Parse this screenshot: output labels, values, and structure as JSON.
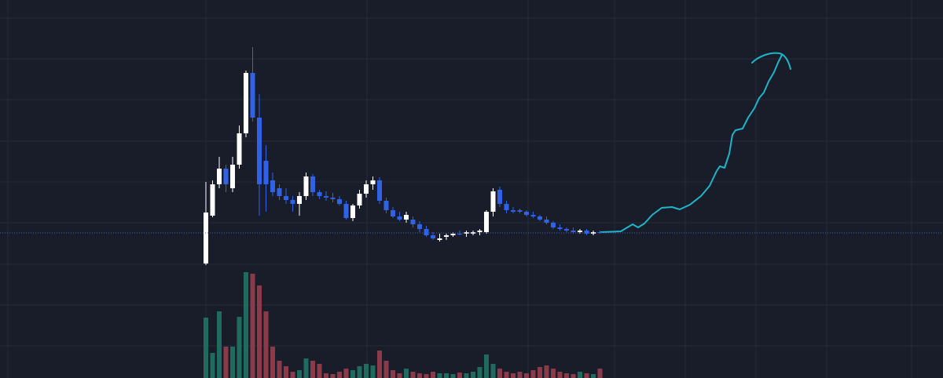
{
  "chart_data": {
    "type": "candlestick",
    "ylim": [
      0,
      482
    ],
    "volume_ylim": [
      0,
      140
    ],
    "up_color": "#ffffff",
    "down_color": "#2f62e6",
    "volume_up_color": "#1f6b5e",
    "volume_down_color": "#8a3a49",
    "last_price_line": true,
    "last_price_color": "#3f63d8",
    "open": [
      146,
      207,
      247,
      267,
      242,
      272,
      312,
      389,
      332,
      277,
      252,
      242,
      232,
      227,
      222,
      232,
      257,
      237,
      232,
      230,
      228,
      222,
      204,
      220,
      235,
      247,
      252,
      226,
      214,
      206,
      202,
      202,
      196,
      190,
      182,
      176,
      180,
      182,
      184,
      184,
      184,
      186,
      186,
      212,
      240,
      222,
      214,
      214,
      212,
      208,
      206,
      202,
      198,
      192,
      190,
      188,
      186,
      188,
      184,
      186
    ],
    "high": [
      250,
      252,
      282,
      272,
      282,
      322,
      392,
      422,
      362,
      297,
      262,
      247,
      242,
      232,
      237,
      262,
      260,
      240,
      238,
      236,
      232,
      226,
      222,
      240,
      252,
      257,
      256,
      230,
      218,
      212,
      212,
      206,
      200,
      194,
      186,
      184,
      184,
      186,
      188,
      188,
      188,
      190,
      214,
      242,
      244,
      226,
      218,
      216,
      214,
      212,
      208,
      206,
      200,
      196,
      192,
      192,
      190,
      190,
      188,
      188
    ],
    "low": [
      144,
      205,
      242,
      237,
      237,
      267,
      307,
      327,
      207,
      212,
      232,
      227,
      222,
      212,
      207,
      227,
      232,
      228,
      226,
      224,
      220,
      202,
      200,
      216,
      230,
      240,
      222,
      210,
      204,
      200,
      198,
      192,
      186,
      180,
      176,
      174,
      176,
      180,
      182,
      180,
      182,
      182,
      184,
      206,
      218,
      210,
      210,
      210,
      206,
      204,
      200,
      196,
      190,
      188,
      186,
      184,
      184,
      182,
      182,
      184
    ],
    "close": [
      211,
      247,
      267,
      247,
      272,
      312,
      389,
      332,
      247,
      247,
      237,
      232,
      227,
      222,
      232,
      257,
      237,
      232,
      230,
      228,
      222,
      204,
      220,
      235,
      247,
      252,
      226,
      214,
      206,
      202,
      208,
      196,
      190,
      182,
      178,
      178,
      182,
      184,
      183,
      186,
      186,
      188,
      212,
      238,
      222,
      214,
      212,
      212,
      208,
      206,
      202,
      198,
      192,
      190,
      188,
      186,
      188,
      184,
      186,
      185
    ],
    "volume": [
      77,
      32,
      85,
      40,
      40,
      78,
      135,
      133,
      118,
      85,
      40,
      22,
      15,
      8,
      10,
      25,
      22,
      18,
      6,
      5,
      8,
      12,
      10,
      15,
      18,
      16,
      35,
      22,
      10,
      6,
      12,
      8,
      6,
      5,
      8,
      6,
      6,
      5,
      7,
      6,
      8,
      14,
      30,
      18,
      12,
      8,
      6,
      8,
      6,
      10,
      14,
      16,
      12,
      8,
      6,
      5,
      8,
      6,
      5,
      12
    ]
  }
}
